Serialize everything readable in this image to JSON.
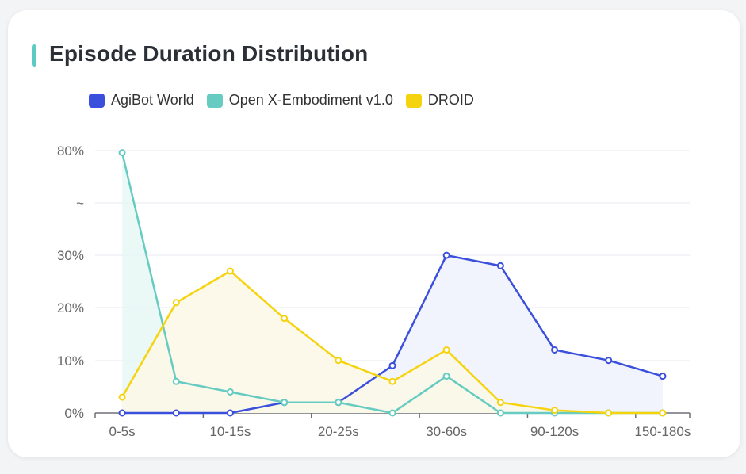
{
  "title": "Episode Duration Distribution",
  "accent_color": "#5ecbc2",
  "chart_data": {
    "type": "line",
    "title": "Episode Duration Distribution",
    "categories": [
      "0-5s",
      "",
      "10-15s",
      "",
      "20-25s",
      "",
      "30-60s",
      "",
      "90-120s",
      "",
      "150-180s"
    ],
    "y_tick_labels": [
      "0%",
      "10%",
      "20%",
      "30%",
      "~",
      "80%"
    ],
    "y_axis_note": "broken axis between 30% and 80%",
    "ylim": [
      0,
      80
    ],
    "grid": true,
    "area_fill": true,
    "legend_position": "top-left",
    "series": [
      {
        "name": "AgiBot World",
        "color": "#3a4fdc",
        "fill": "#eef1fd",
        "values": [
          0,
          0,
          0,
          2,
          2,
          9,
          30,
          28,
          12,
          10,
          7
        ]
      },
      {
        "name": "Open X-Embodiment v1.0",
        "color": "#66cbc0",
        "fill": "#e6f7f5",
        "values": [
          79,
          6,
          4,
          2,
          2,
          0,
          7,
          0,
          0,
          0,
          0
        ]
      },
      {
        "name": "DROID",
        "color": "#f5d40f",
        "fill": "#fbf8e6",
        "values": [
          3,
          21,
          27,
          18,
          10,
          6,
          12,
          2,
          0.5,
          0,
          0
        ]
      }
    ]
  }
}
